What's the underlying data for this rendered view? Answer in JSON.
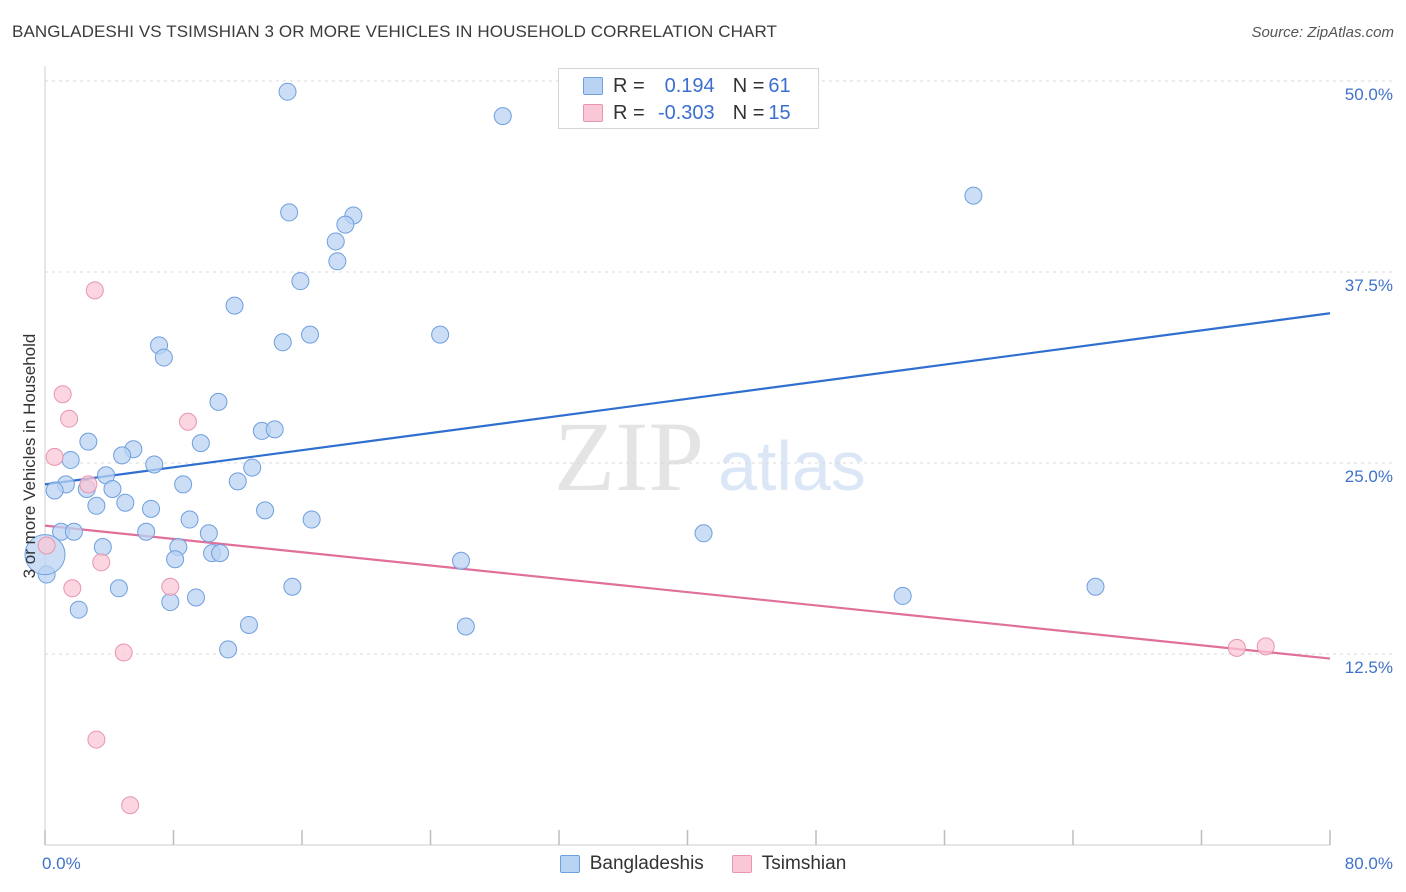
{
  "title": "BANGLADESHI VS TSIMSHIAN 3 OR MORE VEHICLES IN HOUSEHOLD CORRELATION CHART",
  "source": "Source: ZipAtlas.com",
  "watermark": {
    "zip": "ZIP",
    "atlas": "atlas"
  },
  "legend": {
    "rows": [
      {
        "r_label": "R =",
        "r_value": "0.194",
        "n_label": "N =",
        "n_value": "61"
      },
      {
        "r_label": "R =",
        "r_value": "-0.303",
        "n_label": "N =",
        "n_value": "15"
      }
    ]
  },
  "colors": {
    "blue_fill": "#b9d3f3",
    "blue_stroke": "#6f9fde",
    "blue_line": "#2f6fcf",
    "pink_fill": "#f9c7d6",
    "pink_stroke": "#e895b0",
    "pink_line": "#e06f9a",
    "tick_label": "#3f72c9",
    "grid": "#d9d9d9"
  },
  "chart_data": {
    "type": "scatter",
    "title": "BANGLADESHI VS TSIMSHIAN 3 OR MORE VEHICLES IN HOUSEHOLD CORRELATION CHART",
    "xlabel": "",
    "ylabel": "3 or more Vehicles in Household",
    "xlim": [
      0,
      80
    ],
    "ylim": [
      0,
      50
    ],
    "x_tick_labels": [
      "0.0%",
      "80.0%"
    ],
    "y_tick_labels": [
      {
        "value": 50,
        "label": "50.0%"
      },
      {
        "value": 37.5,
        "label": "37.5%"
      },
      {
        "value": 25,
        "label": "25.0%"
      },
      {
        "value": 12.5,
        "label": "12.5%"
      }
    ],
    "series": [
      {
        "name": "Bangladeshis",
        "r": 0.194,
        "n": 61,
        "trend": {
          "x": [
            0,
            80
          ],
          "y": [
            23.6,
            34.8
          ]
        },
        "points": [
          {
            "x": 15.1,
            "y": 49.3
          },
          {
            "x": 28.5,
            "y": 47.7
          },
          {
            "x": 57.8,
            "y": 42.5
          },
          {
            "x": 15.2,
            "y": 41.4
          },
          {
            "x": 19.2,
            "y": 41.2
          },
          {
            "x": 18.7,
            "y": 40.6
          },
          {
            "x": 18.1,
            "y": 39.5
          },
          {
            "x": 18.2,
            "y": 38.2
          },
          {
            "x": 15.9,
            "y": 36.9
          },
          {
            "x": 11.8,
            "y": 35.3
          },
          {
            "x": 16.5,
            "y": 33.4
          },
          {
            "x": 14.8,
            "y": 32.9
          },
          {
            "x": 24.6,
            "y": 33.4
          },
          {
            "x": 7.1,
            "y": 32.7
          },
          {
            "x": 7.4,
            "y": 31.9
          },
          {
            "x": 10.8,
            "y": 29.0
          },
          {
            "x": 13.5,
            "y": 27.1
          },
          {
            "x": 14.3,
            "y": 27.2
          },
          {
            "x": 2.7,
            "y": 26.4
          },
          {
            "x": 9.7,
            "y": 26.3
          },
          {
            "x": 5.5,
            "y": 25.9
          },
          {
            "x": 4.8,
            "y": 25.5
          },
          {
            "x": 6.8,
            "y": 24.9
          },
          {
            "x": 1.6,
            "y": 25.2
          },
          {
            "x": 12.9,
            "y": 24.7
          },
          {
            "x": 3.8,
            "y": 24.2
          },
          {
            "x": 1.3,
            "y": 23.6
          },
          {
            "x": 2.6,
            "y": 23.3
          },
          {
            "x": 8.6,
            "y": 23.6
          },
          {
            "x": 12.0,
            "y": 23.8
          },
          {
            "x": 4.2,
            "y": 23.3
          },
          {
            "x": 0.6,
            "y": 23.2
          },
          {
            "x": 5.0,
            "y": 22.4
          },
          {
            "x": 3.2,
            "y": 22.2
          },
          {
            "x": 6.6,
            "y": 22.0
          },
          {
            "x": 13.7,
            "y": 21.9
          },
          {
            "x": 9.0,
            "y": 21.3
          },
          {
            "x": 16.6,
            "y": 21.3
          },
          {
            "x": 1.0,
            "y": 20.5
          },
          {
            "x": 1.8,
            "y": 20.5
          },
          {
            "x": 6.3,
            "y": 20.5
          },
          {
            "x": 10.2,
            "y": 20.4
          },
          {
            "x": 41.0,
            "y": 20.4
          },
          {
            "x": 3.6,
            "y": 19.5
          },
          {
            "x": 8.3,
            "y": 19.5
          },
          {
            "x": 10.4,
            "y": 19.1
          },
          {
            "x": 10.9,
            "y": 19.1
          },
          {
            "x": 8.1,
            "y": 18.7
          },
          {
            "x": 25.9,
            "y": 18.6
          },
          {
            "x": 0.1,
            "y": 17.7
          },
          {
            "x": 15.4,
            "y": 16.9
          },
          {
            "x": 4.6,
            "y": 16.8
          },
          {
            "x": 65.4,
            "y": 16.9
          },
          {
            "x": 53.4,
            "y": 16.3
          },
          {
            "x": 9.4,
            "y": 16.2
          },
          {
            "x": 7.8,
            "y": 15.9
          },
          {
            "x": 2.1,
            "y": 15.4
          },
          {
            "x": 12.7,
            "y": 14.4
          },
          {
            "x": 26.2,
            "y": 14.3
          },
          {
            "x": 11.4,
            "y": 12.8
          },
          {
            "x": 0.0,
            "y": 19.0
          }
        ]
      },
      {
        "name": "Tsimshian",
        "r": -0.303,
        "n": 15,
        "trend": {
          "x": [
            0,
            80
          ],
          "y": [
            20.9,
            12.2
          ]
        },
        "points": [
          {
            "x": 3.1,
            "y": 36.3
          },
          {
            "x": 1.1,
            "y": 29.5
          },
          {
            "x": 1.5,
            "y": 27.9
          },
          {
            "x": 8.9,
            "y": 27.7
          },
          {
            "x": 0.6,
            "y": 25.4
          },
          {
            "x": 2.7,
            "y": 23.6
          },
          {
            "x": 0.1,
            "y": 19.6
          },
          {
            "x": 3.5,
            "y": 18.5
          },
          {
            "x": 1.7,
            "y": 16.8
          },
          {
            "x": 7.8,
            "y": 16.9
          },
          {
            "x": 4.9,
            "y": 12.6
          },
          {
            "x": 74.2,
            "y": 12.9
          },
          {
            "x": 76.0,
            "y": 13.0
          },
          {
            "x": 3.2,
            "y": 6.9
          },
          {
            "x": 5.3,
            "y": 2.6
          }
        ]
      }
    ]
  }
}
